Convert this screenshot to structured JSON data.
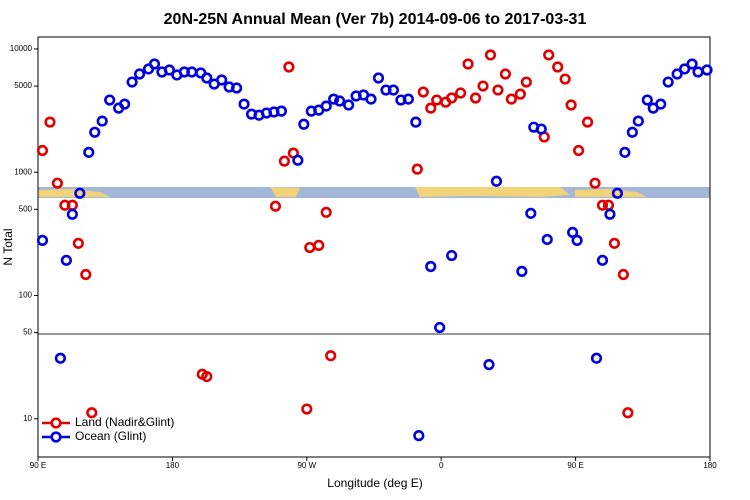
{
  "chart_data": {
    "type": "scatter",
    "title": "20N-25N Annual Mean (Ver 7b)   2014-09-06 to 2017-03-31",
    "xlabel": "Longitude (deg E)",
    "ylabel": "N Total",
    "xlim": [
      90,
      540
    ],
    "xticks": [
      {
        "value": 90,
        "label": "90 E"
      },
      {
        "value": 180,
        "label": "180"
      },
      {
        "value": 270,
        "label": "90 W"
      },
      {
        "value": 360,
        "label": "0"
      },
      {
        "value": 450,
        "label": "90 E"
      },
      {
        "value": 540,
        "label": "180"
      }
    ],
    "ylim": [
      4.9,
      12500
    ],
    "ylog": true,
    "yticks": [
      10000,
      5000,
      1000,
      500,
      100,
      50,
      10
    ],
    "legend": "lower left",
    "series": [
      {
        "name": "Land (Nadir&Glint)",
        "color": "#e00000",
        "x": [
          93,
          98,
          103,
          108,
          113,
          117,
          122,
          126,
          200,
          203,
          249,
          255,
          258,
          261,
          270,
          272,
          278,
          283,
          286,
          344,
          348,
          353,
          357,
          363,
          367,
          373,
          378,
          383,
          388,
          393,
          398,
          403,
          407,
          413,
          417,
          429,
          432,
          438,
          443,
          447,
          452,
          458,
          463,
          468,
          472,
          476,
          482,
          485
        ],
        "values": [
          1500,
          2550,
          815,
          540,
          540,
          265,
          148,
          11.2,
          23,
          22,
          530,
          1230,
          7140,
          1430,
          12,
          245,
          255,
          473,
          32.5,
          1060,
          4470,
          3310,
          3850,
          3700,
          4000,
          4390,
          7550,
          4000,
          5000,
          8940,
          4640,
          6260,
          3920,
          4300,
          5390,
          1930,
          8940,
          7140,
          5700,
          3510,
          1500,
          2550,
          815,
          540,
          540,
          265,
          148,
          11.2
        ]
      },
      {
        "name": "Ocean (Glint)",
        "color": "#0000e0",
        "x": [
          93,
          105,
          109,
          113,
          118,
          124,
          128,
          133,
          138,
          144,
          148,
          153,
          158,
          164,
          168,
          173,
          178,
          183,
          188,
          193,
          199,
          203,
          208,
          213,
          218,
          223,
          228,
          233,
          238,
          243,
          248,
          253,
          264,
          268,
          273,
          278,
          283,
          288,
          292,
          298,
          303,
          308,
          313,
          318,
          323,
          328,
          333,
          338,
          343,
          345,
          353,
          359,
          367,
          392,
          397,
          414,
          420,
          422,
          427,
          431,
          448,
          451,
          464,
          468,
          473,
          478,
          483,
          488,
          492,
          498,
          502,
          507,
          512,
          518,
          523,
          528,
          532,
          538
        ],
        "values": [
          280,
          31,
          193,
          456,
          675,
          1450,
          2110,
          2600,
          3850,
          3310,
          3570,
          5390,
          6260,
          6880,
          7550,
          6500,
          6750,
          6150,
          6500,
          6500,
          6380,
          5810,
          5190,
          5600,
          4910,
          4820,
          3570,
          2960,
          2900,
          3020,
          3080,
          3130,
          1250,
          2450,
          3130,
          3190,
          3440,
          3920,
          3780,
          3510,
          4150,
          4230,
          3920,
          5810,
          4640,
          4640,
          3850,
          3920,
          2550,
          7.3,
          172,
          55,
          211,
          27.5,
          845,
          157,
          464,
          2320,
          2240,
          285,
          325,
          280,
          31,
          193,
          456,
          675,
          1450,
          2110,
          2600,
          3850,
          3310,
          3570,
          5390,
          6260,
          6880,
          7550,
          6500,
          6750
        ]
      }
    ]
  }
}
